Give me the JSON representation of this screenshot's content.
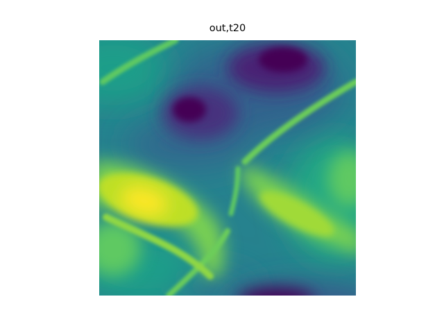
{
  "figure": {
    "title": "out,t20"
  },
  "heatmap": {
    "colormap": "viridis",
    "colors": {
      "low": "#440154",
      "mid": "#21918c",
      "high": "#fde725"
    },
    "grid": "off"
  }
}
